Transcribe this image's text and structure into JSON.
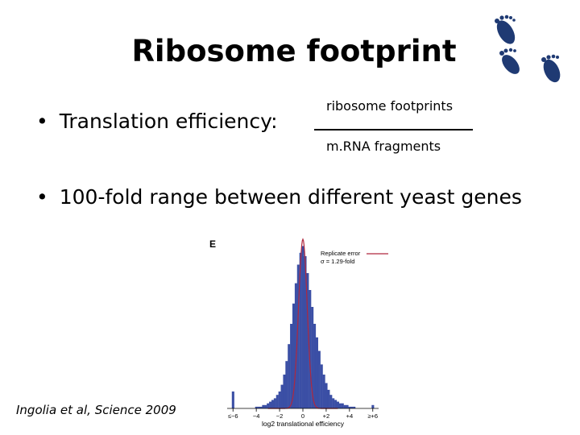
{
  "slide": {
    "title": "Ribosome footprint",
    "bullets": [
      {
        "marker": "•",
        "text": "Translation efficiency:"
      },
      {
        "marker": "•",
        "text": "100-fold range between different yeast genes"
      }
    ],
    "fraction": {
      "numerator": "ribosome footprints",
      "denominator": "m.RNA fragments"
    },
    "citation": "Ingolia et al, Science 2009",
    "decoration": "footprints-icon"
  },
  "chart_data": {
    "type": "bar",
    "panel_label": "E",
    "xlabel": "log2 translational efficiency",
    "xlim": [
      -6.5,
      6.5
    ],
    "x_ticks": [
      "≤−6",
      "−4",
      "−2",
      "0",
      "+2",
      "+4",
      "≥+6"
    ],
    "bar_color": "#3b4fa5",
    "bins": {
      "x": [
        -6.0,
        -5.8,
        -5.6,
        -5.4,
        -5.2,
        -5.0,
        -4.8,
        -4.6,
        -4.4,
        -4.2,
        -4.0,
        -3.8,
        -3.6,
        -3.4,
        -3.2,
        -3.0,
        -2.8,
        -2.6,
        -2.4,
        -2.2,
        -2.0,
        -1.8,
        -1.6,
        -1.4,
        -1.2,
        -1.0,
        -0.8,
        -0.6,
        -0.4,
        -0.2,
        0.0,
        0.2,
        0.4,
        0.6,
        0.8,
        1.0,
        1.2,
        1.4,
        1.6,
        1.8,
        2.0,
        2.2,
        2.4,
        2.6,
        2.8,
        3.0,
        3.2,
        3.4,
        3.6,
        3.8,
        4.0,
        4.2,
        4.4,
        4.6,
        4.8,
        5.0,
        5.2,
        5.4,
        5.6,
        5.8,
        6.0
      ],
      "height": [
        0.1,
        0,
        0,
        0,
        0,
        0,
        0,
        0,
        0,
        0,
        0.01,
        0.01,
        0.01,
        0.02,
        0.02,
        0.03,
        0.04,
        0.05,
        0.06,
        0.08,
        0.1,
        0.14,
        0.2,
        0.28,
        0.38,
        0.5,
        0.62,
        0.74,
        0.85,
        0.92,
        0.96,
        0.9,
        0.8,
        0.7,
        0.6,
        0.5,
        0.42,
        0.34,
        0.26,
        0.2,
        0.15,
        0.11,
        0.08,
        0.06,
        0.05,
        0.04,
        0.03,
        0.03,
        0.02,
        0.02,
        0.01,
        0.01,
        0.01,
        0,
        0,
        0,
        0,
        0,
        0,
        0,
        0.02
      ]
    },
    "series": [
      {
        "name": "Replicate error",
        "annotation": "σ = 1.29-fold",
        "color": "#b0283e",
        "mean": 0.0,
        "sd_log2": 0.37,
        "peak": 1.0
      }
    ]
  }
}
